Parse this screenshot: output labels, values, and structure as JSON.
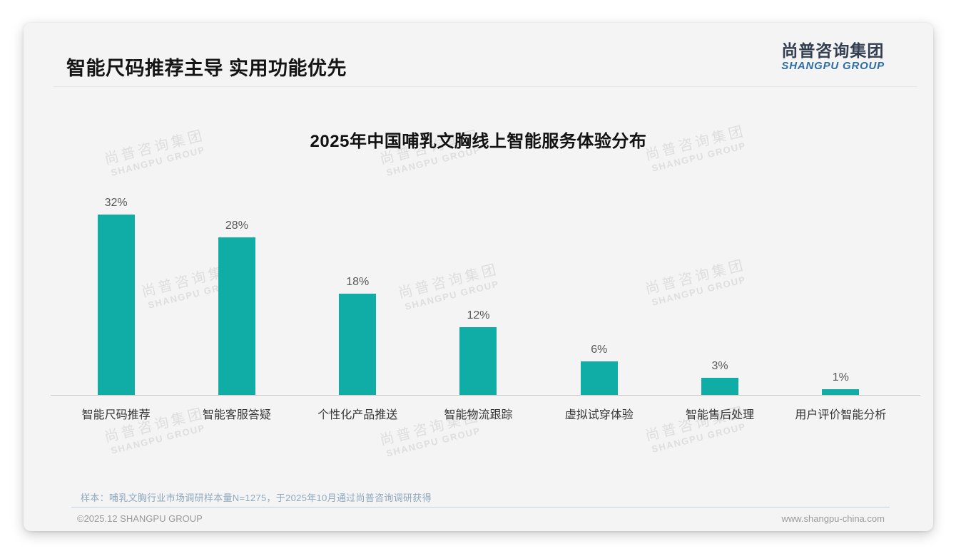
{
  "page": {
    "title": "智能尺码推荐主导 实用功能优先",
    "logo": {
      "cn": "尚普咨询集团",
      "en": "SHANGPU GROUP"
    },
    "watermark": {
      "cn": "尚普咨询集团",
      "en": "SHANGPU GROUP"
    },
    "note": "样本：哺乳文胸行业市场调研样本量N=1275，于2025年10月通过尚普咨询调研获得",
    "footer_left": "©2025.12 SHANGPU GROUP",
    "footer_right": "www.shangpu-china.com"
  },
  "chart_data": {
    "type": "bar",
    "title": "2025年中国哺乳文胸线上智能服务体验分布",
    "categories": [
      "智能尺码推荐",
      "智能客服答疑",
      "个性化产品推送",
      "智能物流跟踪",
      "虚拟试穿体验",
      "智能售后处理",
      "用户评价智能分析"
    ],
    "values": [
      32,
      28,
      18,
      12,
      6,
      3,
      1
    ],
    "value_labels": [
      "32%",
      "28%",
      "18%",
      "12%",
      "6%",
      "3%",
      "1%"
    ],
    "xlabel": "",
    "ylabel": "",
    "ylim": [
      0,
      35
    ],
    "grid": false,
    "legend_position": "none",
    "bar_color": "#0fada6"
  },
  "colors": {
    "bar": "#0fada6",
    "card_bg": "#f4f4f5",
    "logo_cn": "#333e50",
    "logo_en": "#2f6da5",
    "note_text": "#8ea8c0",
    "footer_text": "#9b9b9b",
    "axis_line": "#c9c9c9"
  }
}
